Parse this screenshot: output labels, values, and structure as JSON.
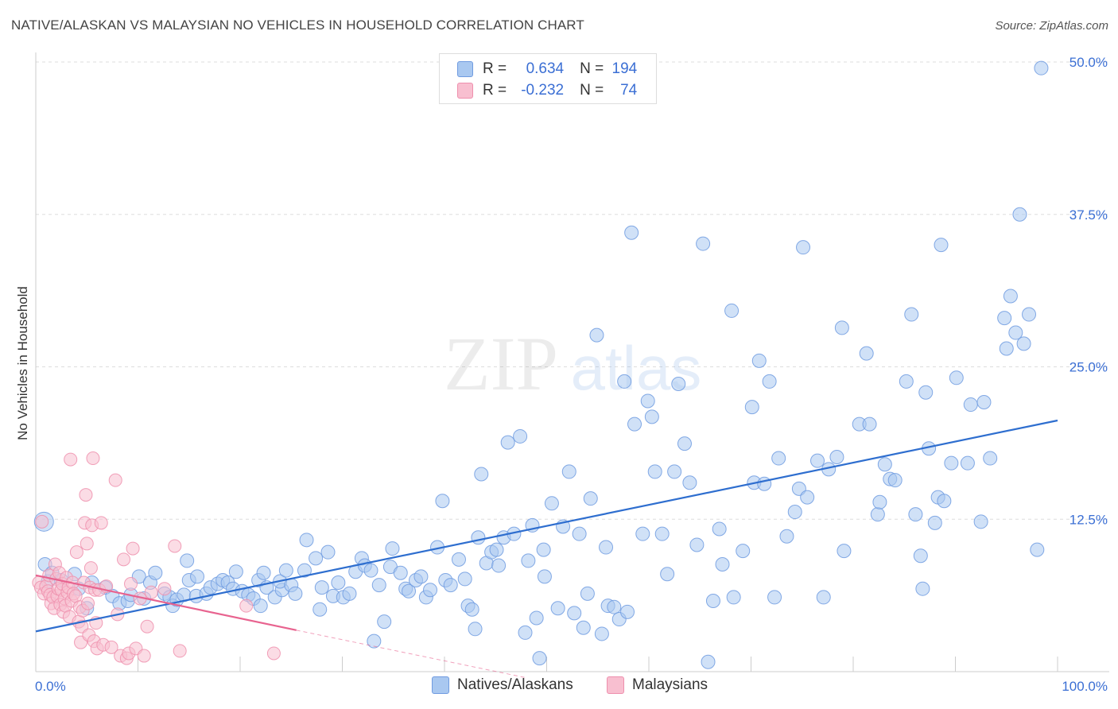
{
  "title": "NATIVE/ALASKAN VS MALAYSIAN NO VEHICLES IN HOUSEHOLD CORRELATION CHART",
  "source": "Source: ZipAtlas.com",
  "watermark": {
    "zip": "ZIP",
    "atlas": "atlas"
  },
  "legend": {
    "r_label": "R =",
    "n_label": "N =",
    "rows": [
      {
        "name": "Natives/Alaskans",
        "r": "0.634",
        "n": "194",
        "color": "#a9c8f0",
        "border": "#6f9be0"
      },
      {
        "name": "Malaysians",
        "r": "-0.232",
        "n": "74",
        "color": "#f8bfd0",
        "border": "#ee8fad"
      }
    ]
  },
  "chart_data": {
    "type": "scatter",
    "title": "NATIVE/ALASKAN VS MALAYSIAN NO VEHICLES IN HOUSEHOLD CORRELATION CHART",
    "xlabel": "",
    "ylabel": "No Vehicles in Household",
    "x_range": [
      0,
      100
    ],
    "y_range": [
      0,
      50
    ],
    "x_tick_labels": [
      "0.0%",
      "100.0%"
    ],
    "y_tick_values": [
      12.5,
      25.0,
      37.5,
      50.0
    ],
    "y_tick_labels": [
      "12.5%",
      "25.0%",
      "37.5%",
      "50.0%"
    ],
    "grid": "horizontal dashed",
    "legend_position": "top-center",
    "series": [
      {
        "name": "Natives/Alaskans",
        "color": "#6f9be0",
        "fill": "#a9c8f0",
        "trend": {
          "x": [
            0,
            100
          ],
          "y": [
            3.3,
            20.6
          ],
          "color": "#2e6ecf"
        },
        "points": [
          [
            0.8,
            12.3
          ],
          [
            0.9,
            8.8
          ],
          [
            1.2,
            7.4
          ],
          [
            1.6,
            8.1
          ],
          [
            2.5,
            7.5
          ],
          [
            3.8,
            8.0
          ],
          [
            4.2,
            6.8
          ],
          [
            5.0,
            5.2
          ],
          [
            5.5,
            7.3
          ],
          [
            6.8,
            6.9
          ],
          [
            7.5,
            6.2
          ],
          [
            8.2,
            5.6
          ],
          [
            9.0,
            5.8
          ],
          [
            9.3,
            6.3
          ],
          [
            10.1,
            7.8
          ],
          [
            10.6,
            6.0
          ],
          [
            11.2,
            7.3
          ],
          [
            11.7,
            8.1
          ],
          [
            12.6,
            6.4
          ],
          [
            13.1,
            6.1
          ],
          [
            13.4,
            5.4
          ],
          [
            13.8,
            5.9
          ],
          [
            14.5,
            6.3
          ],
          [
            15.0,
            7.5
          ],
          [
            14.8,
            9.1
          ],
          [
            15.7,
            6.2
          ],
          [
            15.8,
            7.8
          ],
          [
            16.7,
            6.4
          ],
          [
            17.1,
            6.9
          ],
          [
            17.8,
            7.2
          ],
          [
            18.3,
            7.5
          ],
          [
            18.8,
            7.3
          ],
          [
            19.3,
            6.8
          ],
          [
            19.6,
            8.2
          ],
          [
            20.2,
            6.6
          ],
          [
            20.8,
            6.3
          ],
          [
            21.3,
            6.0
          ],
          [
            21.8,
            7.5
          ],
          [
            22.0,
            5.4
          ],
          [
            22.3,
            8.1
          ],
          [
            22.6,
            6.9
          ],
          [
            23.4,
            6.1
          ],
          [
            24.1,
            6.7
          ],
          [
            23.9,
            7.4
          ],
          [
            24.5,
            8.3
          ],
          [
            25.0,
            7.1
          ],
          [
            25.4,
            6.4
          ],
          [
            26.3,
            8.3
          ],
          [
            26.5,
            10.8
          ],
          [
            27.4,
            9.3
          ],
          [
            27.8,
            5.1
          ],
          [
            28.0,
            6.9
          ],
          [
            28.6,
            9.8
          ],
          [
            29.1,
            6.2
          ],
          [
            29.6,
            7.3
          ],
          [
            30.1,
            6.1
          ],
          [
            30.7,
            6.4
          ],
          [
            31.3,
            8.2
          ],
          [
            31.9,
            9.3
          ],
          [
            32.2,
            8.7
          ],
          [
            32.8,
            8.3
          ],
          [
            33.1,
            2.5
          ],
          [
            33.6,
            7.1
          ],
          [
            34.1,
            4.1
          ],
          [
            34.7,
            8.6
          ],
          [
            34.9,
            10.1
          ],
          [
            35.7,
            8.1
          ],
          [
            36.2,
            6.8
          ],
          [
            36.5,
            6.6
          ],
          [
            37.2,
            7.5
          ],
          [
            37.7,
            7.8
          ],
          [
            38.2,
            6.1
          ],
          [
            38.6,
            6.7
          ],
          [
            39.3,
            10.2
          ],
          [
            39.8,
            14.0
          ],
          [
            40.1,
            7.5
          ],
          [
            40.6,
            7.1
          ],
          [
            41.4,
            9.2
          ],
          [
            42.0,
            7.6
          ],
          [
            42.3,
            5.4
          ],
          [
            42.7,
            5.1
          ],
          [
            43.0,
            3.5
          ],
          [
            43.3,
            11.0
          ],
          [
            43.6,
            16.2
          ],
          [
            44.1,
            8.9
          ],
          [
            44.6,
            9.8
          ],
          [
            45.1,
            10.0
          ],
          [
            45.3,
            8.7
          ],
          [
            45.8,
            11.0
          ],
          [
            46.2,
            18.8
          ],
          [
            46.8,
            11.3
          ],
          [
            47.4,
            19.3
          ],
          [
            47.9,
            3.2
          ],
          [
            48.2,
            9.1
          ],
          [
            48.6,
            12.0
          ],
          [
            49.0,
            4.4
          ],
          [
            49.3,
            1.1
          ],
          [
            49.7,
            10.0
          ],
          [
            49.8,
            7.8
          ],
          [
            50.5,
            13.8
          ],
          [
            51.1,
            5.2
          ],
          [
            51.6,
            11.9
          ],
          [
            52.2,
            16.4
          ],
          [
            52.7,
            4.8
          ],
          [
            53.2,
            11.3
          ],
          [
            53.6,
            3.6
          ],
          [
            54.0,
            6.4
          ],
          [
            54.3,
            14.2
          ],
          [
            54.9,
            27.6
          ],
          [
            55.4,
            3.1
          ],
          [
            55.8,
            10.2
          ],
          [
            56.0,
            5.4
          ],
          [
            56.6,
            5.3
          ],
          [
            57.1,
            4.3
          ],
          [
            57.6,
            23.8
          ],
          [
            57.9,
            4.9
          ],
          [
            58.3,
            36.0
          ],
          [
            58.6,
            20.3
          ],
          [
            59.4,
            11.3
          ],
          [
            59.9,
            22.2
          ],
          [
            60.3,
            20.9
          ],
          [
            60.6,
            16.4
          ],
          [
            61.3,
            11.3
          ],
          [
            61.8,
            8.0
          ],
          [
            62.5,
            16.4
          ],
          [
            62.9,
            23.6
          ],
          [
            63.5,
            18.7
          ],
          [
            64.0,
            15.5
          ],
          [
            64.7,
            10.4
          ],
          [
            65.3,
            35.1
          ],
          [
            65.8,
            0.8
          ],
          [
            66.3,
            5.8
          ],
          [
            66.9,
            11.7
          ],
          [
            67.2,
            8.8
          ],
          [
            68.1,
            29.6
          ],
          [
            68.3,
            6.1
          ],
          [
            69.2,
            9.9
          ],
          [
            70.3,
            15.5
          ],
          [
            70.8,
            25.5
          ],
          [
            71.3,
            15.4
          ],
          [
            71.8,
            23.8
          ],
          [
            72.3,
            6.1
          ],
          [
            72.7,
            17.5
          ],
          [
            73.5,
            11.1
          ],
          [
            74.3,
            13.1
          ],
          [
            74.7,
            15.0
          ],
          [
            75.1,
            34.8
          ],
          [
            75.5,
            14.3
          ],
          [
            76.5,
            17.3
          ],
          [
            77.1,
            6.1
          ],
          [
            77.6,
            16.6
          ],
          [
            78.4,
            17.6
          ],
          [
            78.9,
            28.2
          ],
          [
            79.1,
            9.9
          ],
          [
            80.6,
            20.3
          ],
          [
            81.3,
            26.1
          ],
          [
            81.6,
            20.3
          ],
          [
            82.4,
            12.9
          ],
          [
            82.6,
            13.9
          ],
          [
            83.1,
            17.0
          ],
          [
            83.6,
            15.8
          ],
          [
            84.1,
            15.7
          ],
          [
            85.2,
            23.8
          ],
          [
            85.7,
            29.3
          ],
          [
            86.1,
            12.9
          ],
          [
            86.6,
            9.5
          ],
          [
            86.8,
            6.8
          ],
          [
            87.1,
            22.9
          ],
          [
            87.4,
            18.3
          ],
          [
            88.0,
            12.2
          ],
          [
            88.3,
            14.3
          ],
          [
            88.9,
            14.0
          ],
          [
            89.6,
            17.1
          ],
          [
            90.1,
            24.1
          ],
          [
            91.2,
            17.1
          ],
          [
            91.5,
            21.9
          ],
          [
            92.5,
            12.3
          ],
          [
            92.8,
            22.1
          ],
          [
            93.4,
            17.5
          ],
          [
            94.8,
            29.0
          ],
          [
            95.0,
            26.5
          ],
          [
            95.4,
            30.8
          ],
          [
            95.9,
            27.8
          ],
          [
            96.3,
            37.5
          ],
          [
            96.7,
            26.9
          ],
          [
            97.2,
            29.3
          ],
          [
            98.4,
            49.5
          ],
          [
            98.0,
            10.0
          ],
          [
            88.6,
            35.0
          ],
          [
            70.1,
            21.7
          ]
        ]
      },
      {
        "name": "Malaysians",
        "color": "#ee8fad",
        "fill": "#f8bfd0",
        "trend": {
          "x": [
            0,
            25.5
          ],
          "y": [
            7.9,
            3.4
          ],
          "color": "#e8638f"
        },
        "trend_ext": {
          "x": [
            25.5,
            48
          ],
          "y": [
            3.4,
            -0.5
          ]
        },
        "points": [
          [
            0.3,
            7.3
          ],
          [
            0.5,
            6.9
          ],
          [
            0.6,
            12.3
          ],
          [
            0.8,
            6.4
          ],
          [
            1.0,
            7.0
          ],
          [
            1.2,
            6.6
          ],
          [
            1.3,
            7.9
          ],
          [
            1.4,
            6.3
          ],
          [
            1.5,
            5.6
          ],
          [
            1.7,
            6.1
          ],
          [
            1.8,
            5.2
          ],
          [
            1.9,
            8.8
          ],
          [
            2.0,
            7.6
          ],
          [
            2.1,
            6.2
          ],
          [
            2.2,
            6.8
          ],
          [
            2.3,
            8.1
          ],
          [
            2.4,
            5.5
          ],
          [
            2.5,
            6.7
          ],
          [
            2.6,
            7.2
          ],
          [
            2.7,
            4.9
          ],
          [
            2.8,
            6.0
          ],
          [
            2.9,
            5.4
          ],
          [
            3.0,
            7.7
          ],
          [
            3.1,
            6.5
          ],
          [
            3.2,
            6.9
          ],
          [
            3.3,
            4.5
          ],
          [
            3.4,
            17.4
          ],
          [
            3.5,
            5.8
          ],
          [
            3.6,
            7.3
          ],
          [
            3.7,
            6.4
          ],
          [
            3.9,
            6.2
          ],
          [
            4.0,
            9.8
          ],
          [
            4.2,
            4.1
          ],
          [
            4.3,
            5.3
          ],
          [
            4.4,
            2.4
          ],
          [
            4.5,
            3.7
          ],
          [
            4.6,
            5.0
          ],
          [
            4.7,
            7.3
          ],
          [
            4.8,
            12.2
          ],
          [
            4.9,
            14.5
          ],
          [
            5.0,
            10.5
          ],
          [
            5.1,
            5.6
          ],
          [
            5.2,
            3.0
          ],
          [
            5.3,
            6.9
          ],
          [
            5.4,
            8.5
          ],
          [
            5.5,
            12.0
          ],
          [
            5.6,
            17.5
          ],
          [
            5.7,
            2.5
          ],
          [
            5.8,
            6.7
          ],
          [
            5.9,
            4.0
          ],
          [
            6.0,
            1.9
          ],
          [
            6.2,
            6.7
          ],
          [
            6.4,
            12.2
          ],
          [
            6.6,
            2.2
          ],
          [
            6.9,
            7.0
          ],
          [
            7.4,
            2.0
          ],
          [
            7.8,
            15.7
          ],
          [
            8.0,
            4.7
          ],
          [
            8.3,
            1.3
          ],
          [
            8.6,
            9.2
          ],
          [
            8.9,
            1.1
          ],
          [
            9.1,
            1.5
          ],
          [
            9.3,
            7.2
          ],
          [
            9.5,
            10.1
          ],
          [
            9.8,
            1.9
          ],
          [
            10.2,
            6.0
          ],
          [
            10.6,
            1.3
          ],
          [
            10.9,
            3.7
          ],
          [
            11.3,
            6.5
          ],
          [
            12.6,
            6.8
          ],
          [
            13.6,
            10.3
          ],
          [
            14.1,
            1.7
          ],
          [
            20.6,
            5.4
          ],
          [
            23.3,
            1.5
          ]
        ]
      }
    ]
  }
}
